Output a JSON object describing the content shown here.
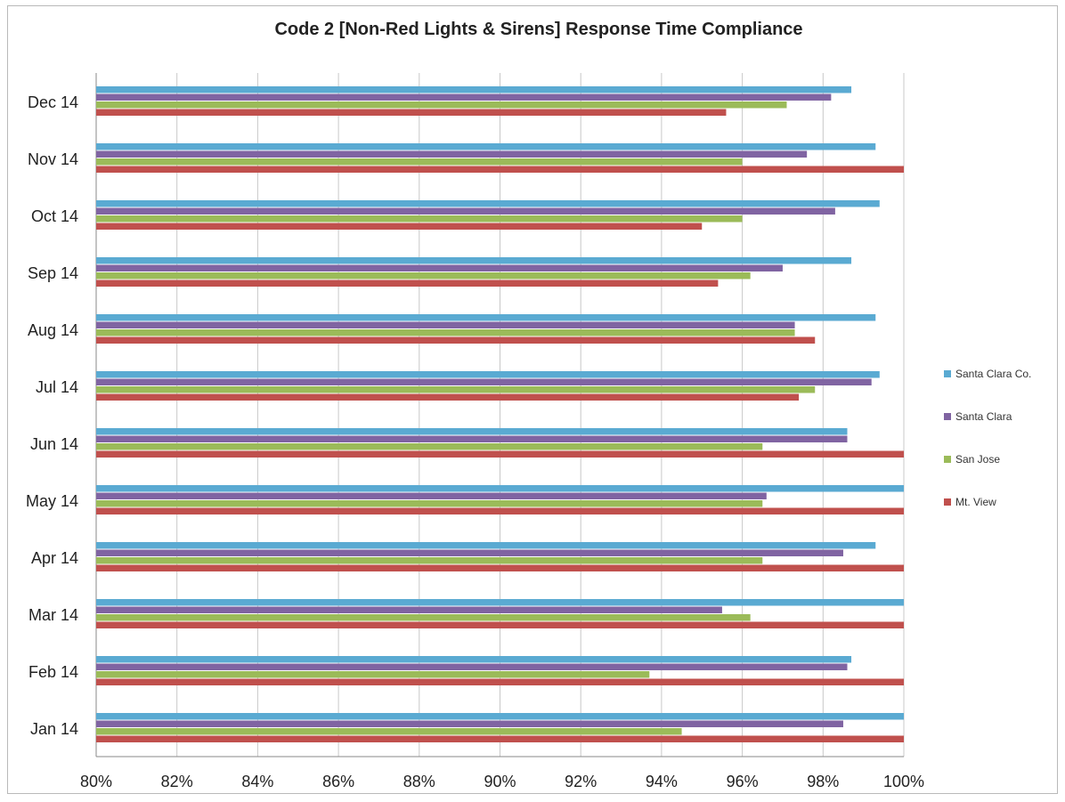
{
  "chart_data": {
    "type": "bar",
    "orientation": "horizontal",
    "title": "Code 2 [Non-Red Lights & Sirens] Response Time Compliance",
    "xlabel": "",
    "ylabel": "",
    "xlim": [
      80,
      100
    ],
    "x_ticks": [
      "80%",
      "82%",
      "84%",
      "86%",
      "88%",
      "90%",
      "92%",
      "94%",
      "96%",
      "98%",
      "100%"
    ],
    "grid": "vertical",
    "legend_position": "right",
    "categories": [
      "Dec 14",
      "Nov 14",
      "Oct 14",
      "Sep 14",
      "Aug 14",
      "Jul 14",
      "Jun 14",
      "May 14",
      "Apr 14",
      "Mar 14",
      "Feb 14",
      "Jan 14"
    ],
    "series": [
      {
        "name": "Santa Clara Co.",
        "color": "#5aaad2",
        "values": [
          98.7,
          99.3,
          99.4,
          98.7,
          99.3,
          99.4,
          98.6,
          100,
          99.3,
          100,
          98.7,
          100
        ]
      },
      {
        "name": "Santa Clara",
        "color": "#8064a2",
        "values": [
          98.2,
          97.6,
          98.3,
          97.0,
          97.3,
          99.2,
          98.6,
          96.6,
          98.5,
          95.5,
          98.6,
          98.5
        ]
      },
      {
        "name": "San Jose",
        "color": "#9bbb59",
        "values": [
          97.1,
          96.0,
          96.0,
          96.2,
          97.3,
          97.8,
          96.5,
          96.5,
          96.5,
          96.2,
          93.7,
          94.5
        ]
      },
      {
        "name": "Mt. View",
        "color": "#c0504d",
        "values": [
          95.6,
          100,
          95.0,
          95.4,
          97.8,
          97.4,
          100,
          100,
          100,
          100,
          100,
          100
        ]
      }
    ]
  }
}
